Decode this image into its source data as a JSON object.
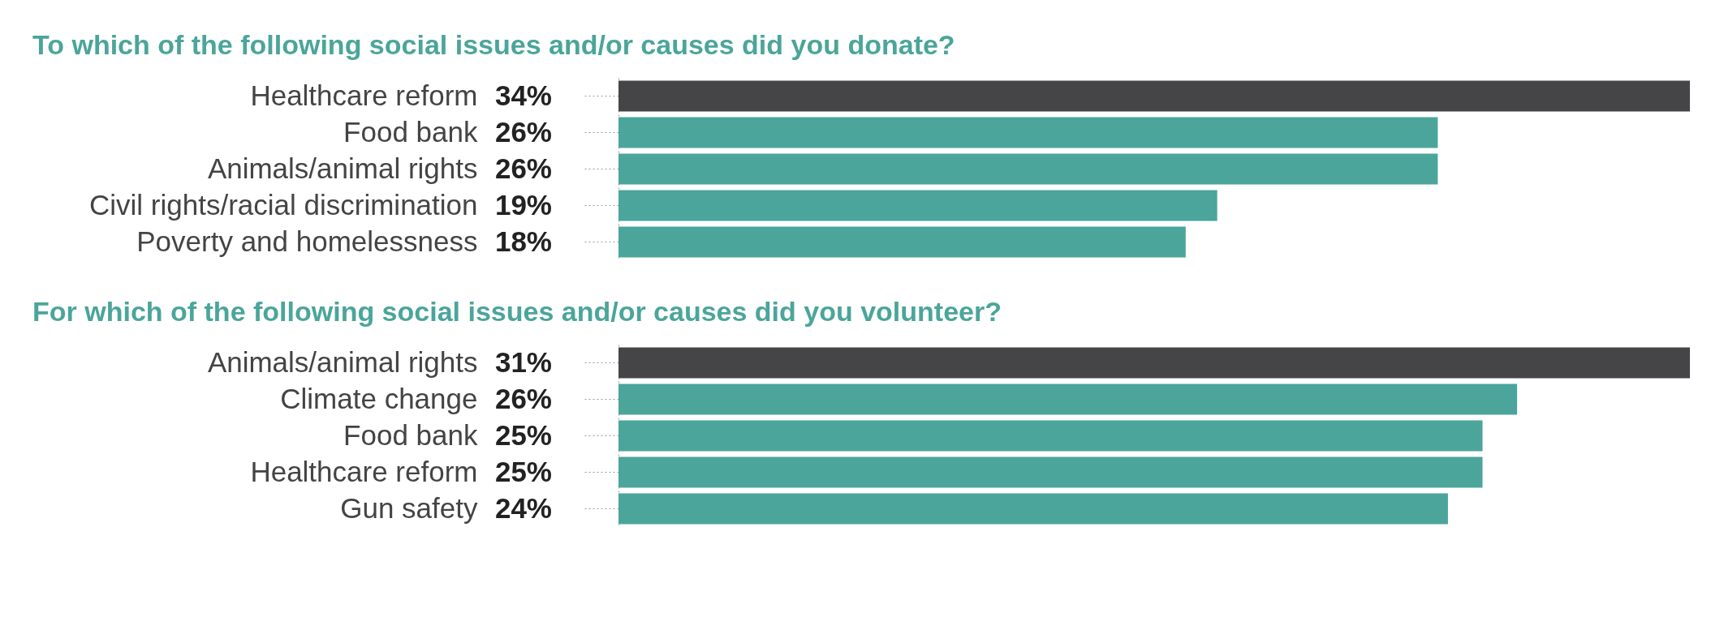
{
  "chart_data": [
    {
      "type": "bar",
      "orientation": "horizontal",
      "title": "To which of the following social issues and/or causes did you donate?",
      "categories": [
        "Healthcare reform",
        "Food bank",
        "Animals/animal rights",
        "Civil rights/racial discrimination",
        "Poverty and homelessness"
      ],
      "values": [
        34,
        26,
        26,
        19,
        18
      ],
      "value_labels": [
        "34%",
        "26%",
        "26%",
        "19%",
        "18%"
      ],
      "colors": [
        "#454547",
        "#4ba59a",
        "#4ba59a",
        "#4ba59a",
        "#4ba59a"
      ]
    },
    {
      "type": "bar",
      "orientation": "horizontal",
      "title": "For which of the following social issues and/or causes did you volunteer?",
      "categories": [
        "Animals/animal rights",
        "Climate change",
        "Food bank",
        "Healthcare reform",
        "Gun safety"
      ],
      "values": [
        31,
        26,
        25,
        25,
        24
      ],
      "value_labels": [
        "31%",
        "26%",
        "25%",
        "25%",
        "24%"
      ],
      "colors": [
        "#454547",
        "#4ba59a",
        "#4ba59a",
        "#4ba59a",
        "#4ba59a"
      ]
    }
  ]
}
